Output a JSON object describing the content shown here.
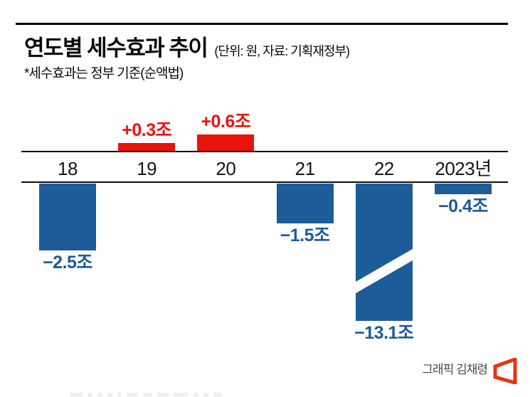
{
  "header": {
    "title": "연도별 세수효과 추이",
    "unit_note": "(단위: 원, 자료: 기획재정부)",
    "footnote": "*세수효과는 정부 기준(순액법)"
  },
  "credit": {
    "text": "그래픽 김채령",
    "logo_name": "asia-economy-logo"
  },
  "colors": {
    "positive_red": "#e8150d",
    "negative_blue": "#1d5b99",
    "axis_black": "#0d0d0d",
    "credit_gray": "#4a4a4a",
    "logo_red": "#e8340f"
  },
  "chart_data": {
    "type": "bar",
    "title": "연도별 세수효과 추이",
    "unit": "조 원",
    "categories": [
      "18",
      "19",
      "20",
      "21",
      "22",
      "2023년"
    ],
    "values": [
      -2.5,
      0.3,
      0.6,
      -1.5,
      -13.1,
      -0.4
    ],
    "labels": [
      "−2.5조",
      "+0.3조",
      "+0.6조",
      "−1.5조",
      "−13.1조",
      "−0.4조"
    ],
    "series_note": "positive bars red above baseline, negative bars blue below baseline",
    "axis_break": {
      "category": "22",
      "reason": "bar truncated with white diagonal break band"
    },
    "ylim": [
      -13.1,
      0.6
    ],
    "grid": false,
    "legend": false
  }
}
